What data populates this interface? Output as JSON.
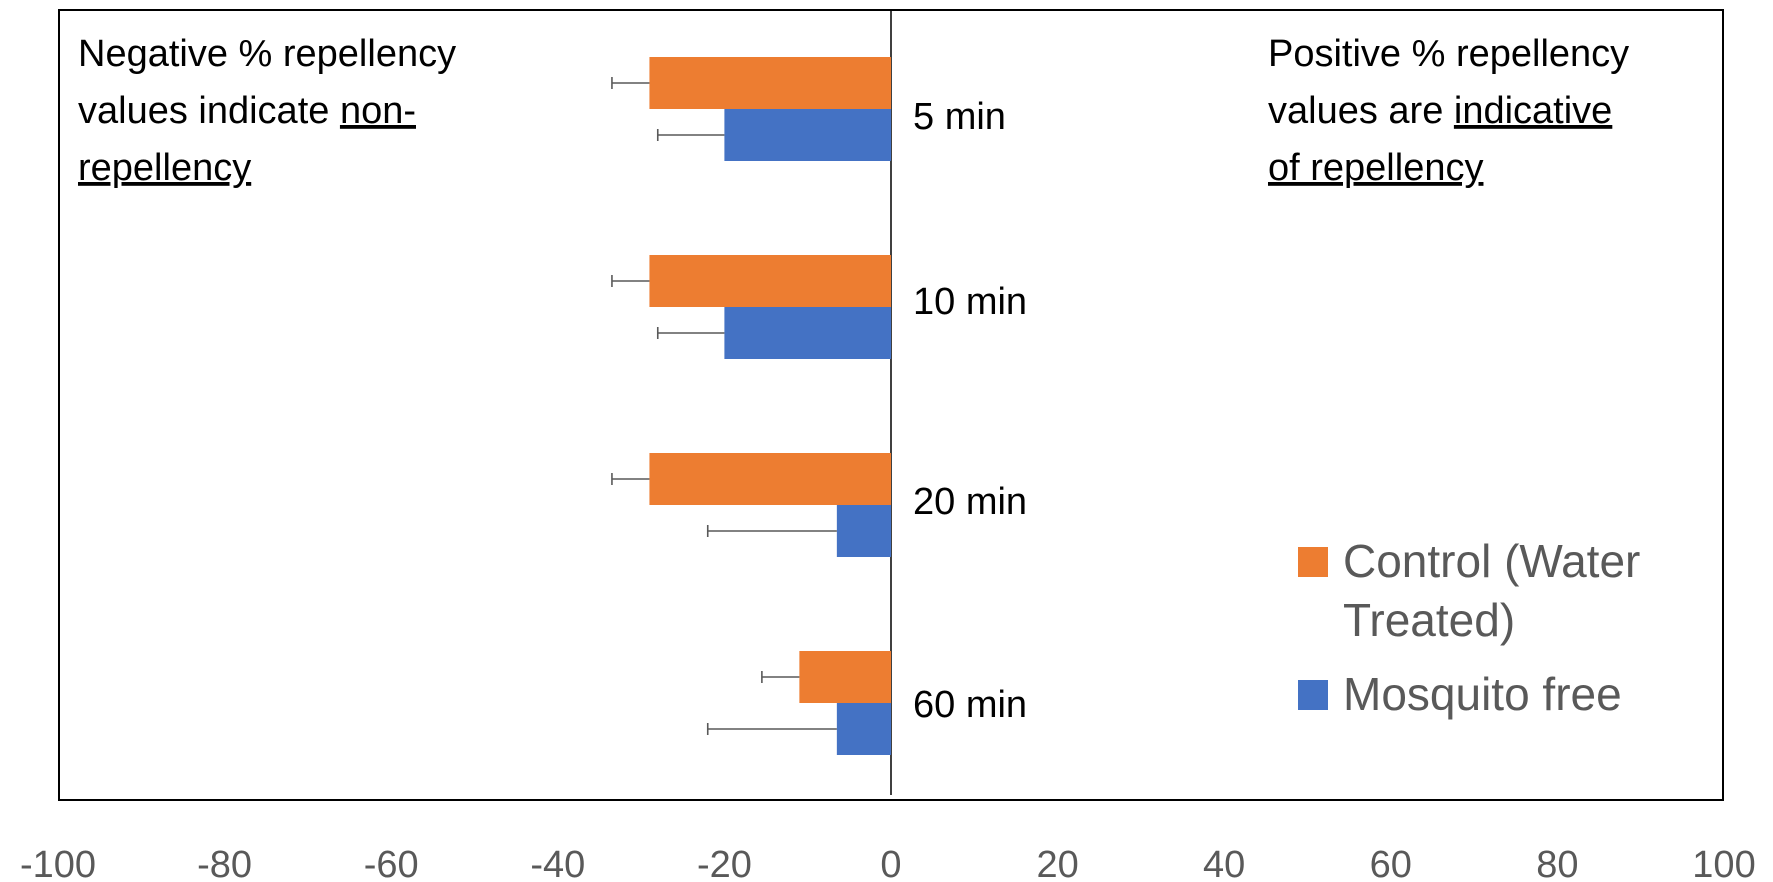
{
  "chart_data": {
    "type": "bar",
    "orientation": "horizontal",
    "categories": [
      "5 min",
      "10 min",
      "20 min",
      "60 min"
    ],
    "series": [
      {
        "name": "Control (Water Treated)",
        "color": "#ED7D31",
        "values": [
          -29,
          -29,
          -29,
          -11
        ],
        "errors": [
          4.5,
          4.5,
          4.5,
          4.5
        ]
      },
      {
        "name": "Mosquito free",
        "color": "#4472C4",
        "values": [
          -20,
          -20,
          -6.5,
          -6.5
        ],
        "errors": [
          8,
          8,
          15.5,
          15.5
        ]
      }
    ],
    "xlim": [
      -100,
      100
    ],
    "xticks": [
      -100,
      -80,
      -60,
      -40,
      -20,
      0,
      20,
      40,
      60,
      80,
      100
    ],
    "grid": false,
    "legend_position": "bottom-right",
    "annotations": {
      "left_line1": "Negative % repellency",
      "left_line2_plain": "values indicate ",
      "left_line2_underlined": "non-",
      "left_line3_underlined": "repellency",
      "right_line1": "Positive % repellency",
      "right_line2_plain": "values are ",
      "right_line2_underlined": "indicative",
      "right_line3_underlined": "of repellency"
    },
    "legend_labels": [
      "Control (Water",
      "Treated)",
      "Mosquito free"
    ]
  }
}
